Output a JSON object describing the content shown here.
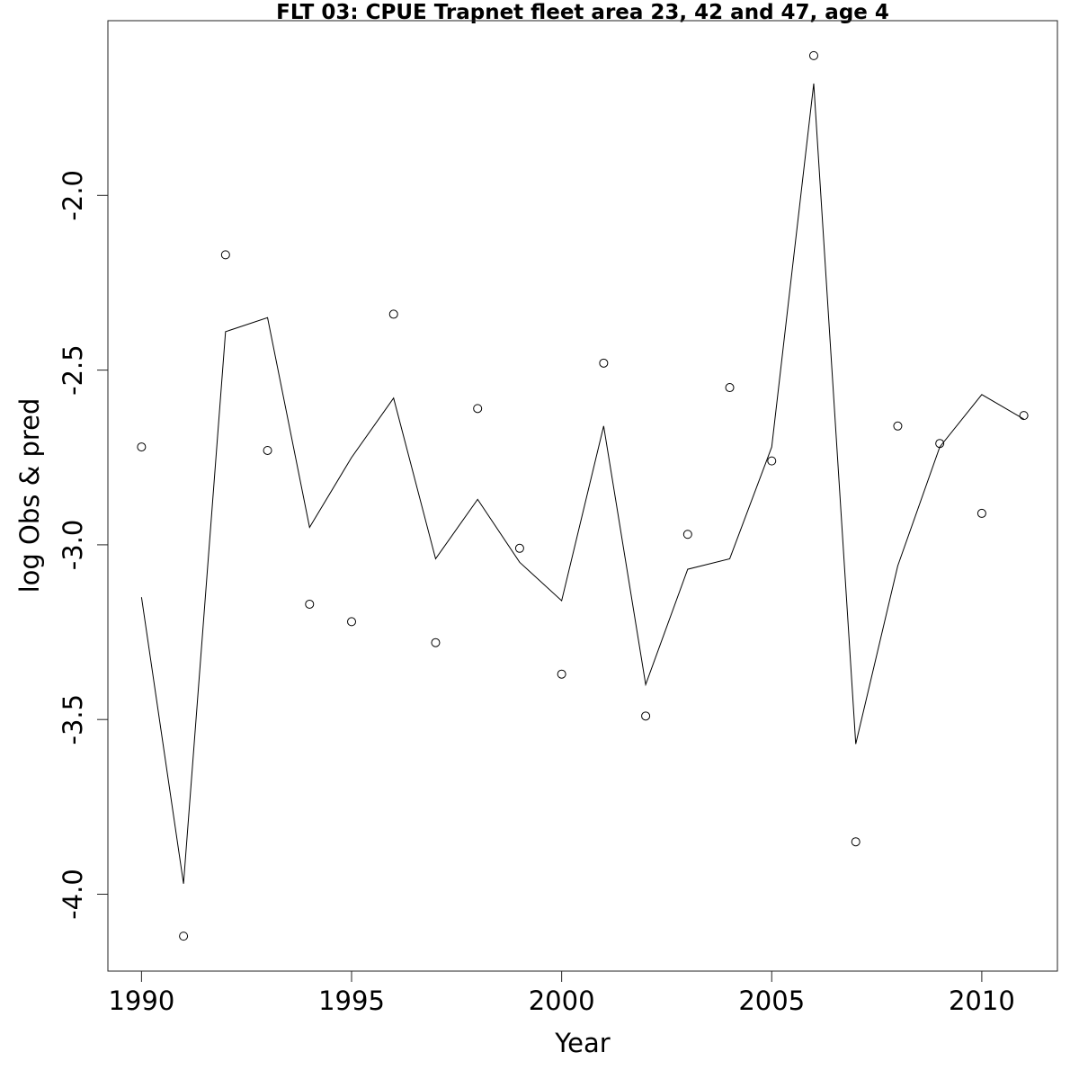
{
  "chart_data": {
    "type": "scatter",
    "title": "FLT 03: CPUE Trapnet fleet area 23, 42 and 47, age 4",
    "xlabel": "Year",
    "ylabel": "log Obs & pred",
    "xlim": [
      1989.2,
      2011.8
    ],
    "ylim": [
      -4.22,
      -1.5
    ],
    "x_ticks": [
      1990,
      1995,
      2000,
      2005,
      2010
    ],
    "x_tick_labels": [
      "1990",
      "1995",
      "2000",
      "2005",
      "2010"
    ],
    "y_ticks": [
      -4.0,
      -3.5,
      -3.0,
      -2.5,
      -2.0
    ],
    "y_tick_labels": [
      "-4.0",
      "-3.5",
      "-3.0",
      "-2.5",
      "-2.0"
    ],
    "grid": false,
    "x": [
      1990,
      1991,
      1992,
      1993,
      1994,
      1995,
      1996,
      1997,
      1998,
      1999,
      2000,
      2001,
      2002,
      2003,
      2004,
      2005,
      2006,
      2007,
      2008,
      2009,
      2010,
      2011
    ],
    "series": [
      {
        "style": "points",
        "values": [
          -2.72,
          -4.12,
          -2.17,
          -2.73,
          -3.17,
          -3.22,
          -2.34,
          -3.28,
          -2.61,
          -3.01,
          -3.37,
          -2.48,
          -3.49,
          -2.97,
          -2.55,
          -2.76,
          -1.6,
          -3.85,
          -2.66,
          -2.71,
          -2.91,
          -2.63
        ]
      },
      {
        "style": "line",
        "values": [
          -3.15,
          -3.97,
          -2.39,
          -2.35,
          -2.95,
          -2.75,
          -2.58,
          -3.04,
          -2.87,
          -3.05,
          -3.16,
          -2.66,
          -3.4,
          -3.07,
          -3.04,
          -2.72,
          -1.68,
          -3.57,
          -3.06,
          -2.72,
          -2.57,
          -2.64
        ]
      }
    ]
  }
}
